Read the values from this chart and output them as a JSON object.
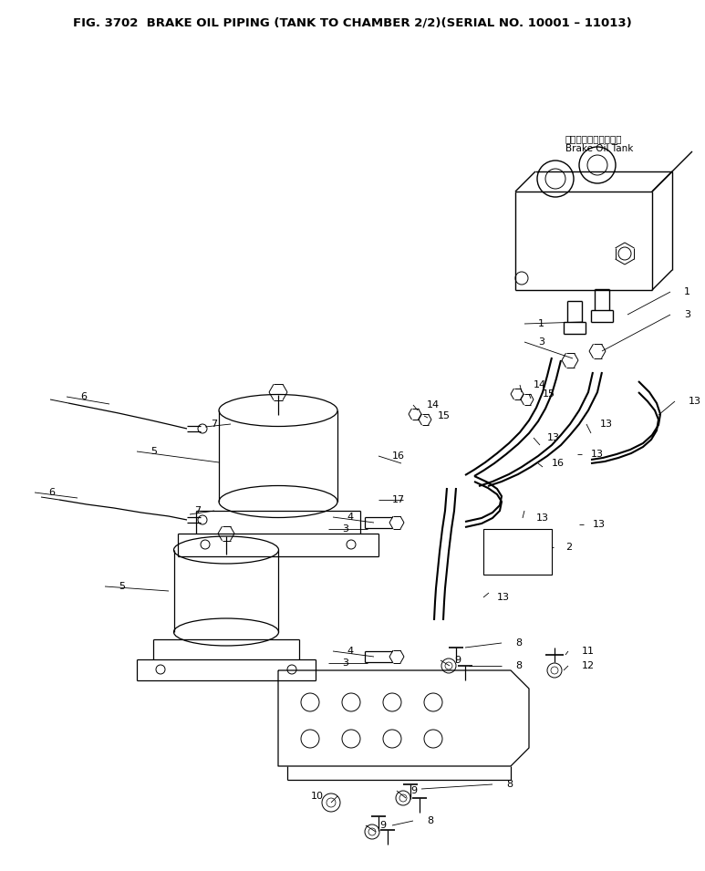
{
  "title": "FIG. 3702  BRAKE OIL PIPING (TANK TO CHAMBER 2/2)(SERIAL NO. 10001 – 11013)",
  "title_fontsize": 9.5,
  "title_fontweight": "bold",
  "bg_color": "#ffffff",
  "fig_width": 7.73,
  "fig_height": 9.55,
  "dpi": 100,
  "tank_label_jp": "ブレーキオイルタンク",
  "tank_label_en": "Brake Oil Tank",
  "line_color": "#000000",
  "text_color": "#000000"
}
